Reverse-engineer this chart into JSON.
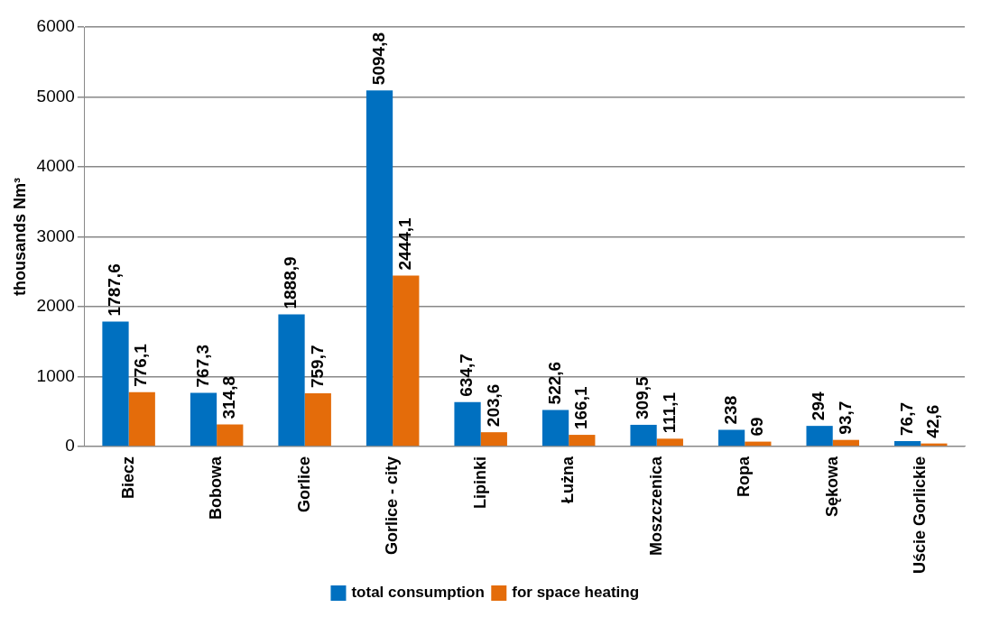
{
  "chart_data": {
    "type": "bar",
    "ylabel": "thousands Nm³",
    "categories": [
      "Biecz",
      "Bobowa",
      "Gorlice",
      "Gorlice - city",
      "Lipinki",
      "Łużna",
      "Moszczenica",
      "Ropa",
      "Sękowa",
      "Uście Gorlickie"
    ],
    "series": [
      {
        "name": "total consumption",
        "color": "#0070c0",
        "values": [
          1787.6,
          767.3,
          1888.9,
          5094.8,
          634.7,
          522.6,
          309.5,
          238,
          294,
          76.7
        ],
        "value_labels": [
          "1787,6",
          "767,3",
          "1888,9",
          "5094,8",
          "634,7",
          "522,6",
          "309,5",
          "238",
          "294",
          "76,7"
        ]
      },
      {
        "name": "for space heating",
        "color": "#e46c0a",
        "values": [
          776.1,
          314.8,
          759.7,
          2444.1,
          203.6,
          166.1,
          111.1,
          69,
          93.7,
          42.6
        ],
        "value_labels": [
          "776,1",
          "314,8",
          "759,7",
          "2444,1",
          "203,6",
          "166,1",
          "111,1",
          "69",
          "93,7",
          "42,6"
        ]
      }
    ],
    "ylim": [
      0,
      6000
    ],
    "yticks": [
      0,
      1000,
      2000,
      3000,
      4000,
      5000,
      6000
    ],
    "grid": "y",
    "legend": "bottom"
  }
}
